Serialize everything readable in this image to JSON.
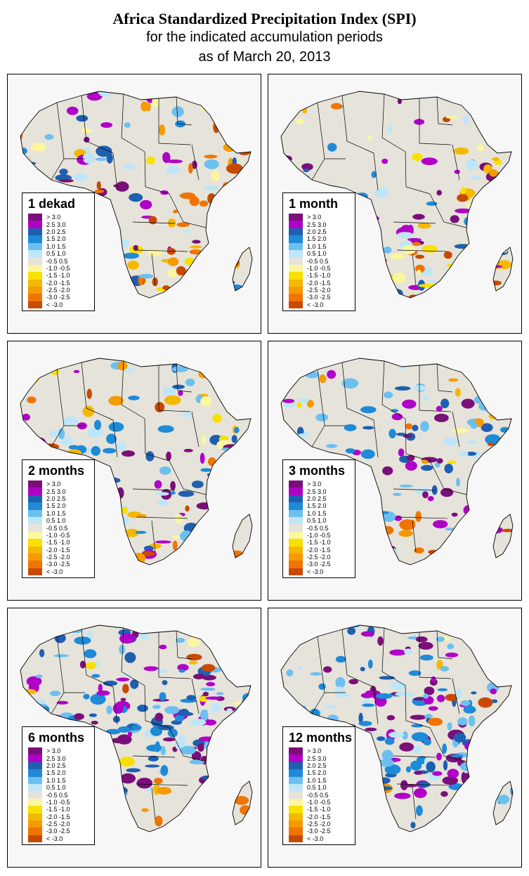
{
  "title": "Africa Standardized Precipitation Index (SPI)",
  "subtitle1": "for the indicated accumulation periods",
  "subtitle2": "as of March 20, 2013",
  "legend_items": [
    {
      "label": " > 3.0",
      "color": "#7a0f7a"
    },
    {
      "label": "2.5  3.0",
      "color": "#b000c8"
    },
    {
      "label": "2.0  2.5",
      "color": "#1f5fb0"
    },
    {
      "label": "1.5  2.0",
      "color": "#1e8ad8"
    },
    {
      "label": "1.0  1.5",
      "color": "#6cc0f0"
    },
    {
      "label": "0.5  1.0",
      "color": "#bfe6f8"
    },
    {
      "label": "-0.5  0.5",
      "color": "#e6e3da"
    },
    {
      "label": "-1.0 -0.5",
      "color": "#fbf6a0"
    },
    {
      "label": "-1.5 -1.0",
      "color": "#f8e000"
    },
    {
      "label": "-2.0 -1.5",
      "color": "#f5b800"
    },
    {
      "label": "-2.5 -2.0",
      "color": "#f59a00"
    },
    {
      "label": "-3.0 -2.5",
      "color": "#f07400"
    },
    {
      "label": " < -3.0",
      "color": "#c84a00"
    }
  ],
  "panels": [
    {
      "label": "1 dekad",
      "wet": 0.18,
      "dry": 0.35
    },
    {
      "label": "1 month",
      "wet": 0.22,
      "dry": 0.3
    },
    {
      "label": "2 months",
      "wet": 0.3,
      "dry": 0.22
    },
    {
      "label": "3 months",
      "wet": 0.35,
      "dry": 0.15
    },
    {
      "label": "6 months",
      "wet": 0.55,
      "dry": 0.1
    },
    {
      "label": "12 months",
      "wet": 0.65,
      "dry": 0.06
    }
  ]
}
